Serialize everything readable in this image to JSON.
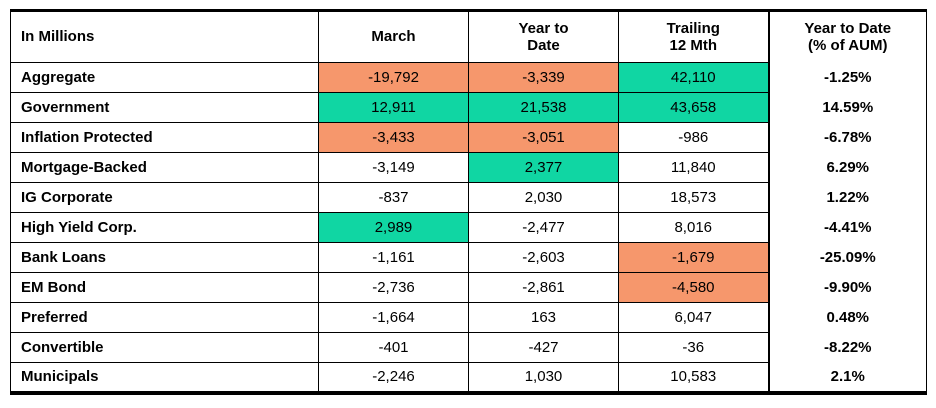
{
  "chart_data": {
    "type": "table",
    "unit_label": "In Millions",
    "columns": [
      {
        "key": "march",
        "label": "March"
      },
      {
        "key": "year-to-date",
        "label": "Year to\nDate"
      },
      {
        "key": "trailing-12-mth",
        "label": "Trailing\n12 Mth"
      },
      {
        "key": "year-to-date-pct-aum",
        "label": "Year to Date\n(% of AUM)"
      }
    ],
    "rows": [
      {
        "label": "Aggregate",
        "values": [
          "-19,792",
          "-3,339",
          "42,110",
          "-1.25%"
        ],
        "highlight": [
          "orange",
          "orange",
          "green",
          null
        ]
      },
      {
        "label": "Government",
        "values": [
          "12,911",
          "21,538",
          "43,658",
          "14.59%"
        ],
        "highlight": [
          "green",
          "green",
          "green",
          null
        ]
      },
      {
        "label": "Inflation Protected",
        "values": [
          "-3,433",
          "-3,051",
          "-986",
          "-6.78%"
        ],
        "highlight": [
          "orange",
          "orange",
          null,
          null
        ]
      },
      {
        "label": "Mortgage-Backed",
        "values": [
          "-3,149",
          "2,377",
          "11,840",
          "6.29%"
        ],
        "highlight": [
          null,
          "green",
          null,
          null
        ]
      },
      {
        "label": "IG Corporate",
        "values": [
          "-837",
          "2,030",
          "18,573",
          "1.22%"
        ],
        "highlight": [
          null,
          null,
          null,
          null
        ]
      },
      {
        "label": "High Yield Corp.",
        "values": [
          "2,989",
          "-2,477",
          "8,016",
          "-4.41%"
        ],
        "highlight": [
          "green",
          null,
          null,
          null
        ]
      },
      {
        "label": "Bank Loans",
        "values": [
          "-1,161",
          "-2,603",
          "-1,679",
          "-25.09%"
        ],
        "highlight": [
          null,
          null,
          "orange",
          null
        ]
      },
      {
        "label": "EM Bond",
        "values": [
          "-2,736",
          "-2,861",
          "-4,580",
          "-9.90%"
        ],
        "highlight": [
          null,
          null,
          "orange",
          null
        ]
      },
      {
        "label": "Preferred",
        "values": [
          "-1,664",
          "163",
          "6,047",
          "0.48%"
        ],
        "highlight": [
          null,
          null,
          null,
          null
        ]
      },
      {
        "label": "Convertible",
        "values": [
          "-401",
          "-427",
          "-36",
          "-8.22%"
        ],
        "highlight": [
          null,
          null,
          null,
          null
        ]
      },
      {
        "label": "Municipals",
        "values": [
          "-2,246",
          "1,030",
          "10,583",
          "2.1%"
        ],
        "highlight": [
          null,
          null,
          null,
          null
        ]
      }
    ],
    "colors": {
      "highlight_orange": "#f6976c",
      "highlight_green": "#10d6a3",
      "border": "#000000"
    }
  }
}
